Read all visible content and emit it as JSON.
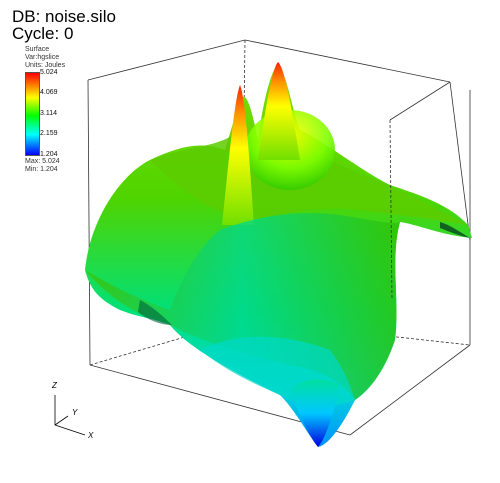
{
  "header": {
    "db": "DB: noise.silo",
    "cycle": "Cycle: 0"
  },
  "legend": {
    "plot_type": "Surface",
    "variable": "Var:hgslice",
    "units": "Units: Joules",
    "ticks": [
      "5.024",
      "4.069",
      "3.114",
      "2.159",
      "1.204"
    ],
    "max_label": "Max: 5.024",
    "min_label": "Min: 1.204",
    "colormap": [
      "#ff0000",
      "#ff8000",
      "#ffff00",
      "#00ff00",
      "#00ffff",
      "#0000ff"
    ]
  },
  "triad": {
    "x": "X",
    "y": "Y",
    "z": "Z"
  }
}
